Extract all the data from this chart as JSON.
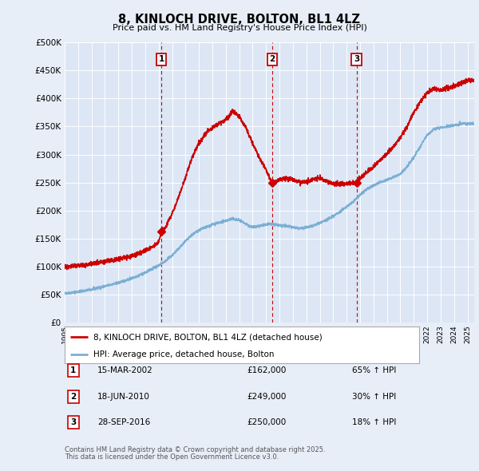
{
  "title": "8, KINLOCH DRIVE, BOLTON, BL1 4LZ",
  "subtitle": "Price paid vs. HM Land Registry's House Price Index (HPI)",
  "ytick_values": [
    0,
    50000,
    100000,
    150000,
    200000,
    250000,
    300000,
    350000,
    400000,
    450000,
    500000
  ],
  "ylim": [
    0,
    500000
  ],
  "xlim_start": 1995.0,
  "xlim_end": 2025.5,
  "sale_dates": [
    2002.21,
    2010.46,
    2016.74
  ],
  "sale_prices": [
    162000,
    249000,
    250000
  ],
  "sale_labels": [
    "1",
    "2",
    "3"
  ],
  "legend_property": "8, KINLOCH DRIVE, BOLTON, BL1 4LZ (detached house)",
  "legend_hpi": "HPI: Average price, detached house, Bolton",
  "table_rows": [
    {
      "label": "1",
      "date": "15-MAR-2002",
      "price": "£162,000",
      "change": "65% ↑ HPI"
    },
    {
      "label": "2",
      "date": "18-JUN-2010",
      "price": "£249,000",
      "change": "30% ↑ HPI"
    },
    {
      "label": "3",
      "date": "28-SEP-2016",
      "price": "£250,000",
      "change": "18% ↑ HPI"
    }
  ],
  "footnote1": "Contains HM Land Registry data © Crown copyright and database right 2025.",
  "footnote2": "This data is licensed under the Open Government Licence v3.0.",
  "color_property": "#cc0000",
  "color_hpi": "#7BAFD4",
  "color_vline": "#cc0000",
  "background_color": "#e8eef8",
  "plot_bg": "#dce6f5",
  "hpi_anchors": [
    [
      1995.0,
      52000
    ],
    [
      1995.5,
      53500
    ],
    [
      1996.0,
      55000
    ],
    [
      1996.5,
      57000
    ],
    [
      1997.0,
      59000
    ],
    [
      1997.5,
      62000
    ],
    [
      1998.0,
      65000
    ],
    [
      1998.5,
      68000
    ],
    [
      1999.0,
      71000
    ],
    [
      1999.5,
      75000
    ],
    [
      2000.0,
      79000
    ],
    [
      2000.5,
      84000
    ],
    [
      2001.0,
      89000
    ],
    [
      2001.5,
      96000
    ],
    [
      2002.0,
      102000
    ],
    [
      2002.5,
      110000
    ],
    [
      2003.0,
      120000
    ],
    [
      2003.5,
      132000
    ],
    [
      2004.0,
      145000
    ],
    [
      2004.5,
      157000
    ],
    [
      2005.0,
      165000
    ],
    [
      2005.5,
      170000
    ],
    [
      2006.0,
      175000
    ],
    [
      2006.5,
      178000
    ],
    [
      2007.0,
      182000
    ],
    [
      2007.5,
      185000
    ],
    [
      2008.0,
      183000
    ],
    [
      2008.5,
      176000
    ],
    [
      2009.0,
      170000
    ],
    [
      2009.5,
      172000
    ],
    [
      2010.0,
      175000
    ],
    [
      2010.5,
      176000
    ],
    [
      2011.0,
      174000
    ],
    [
      2011.5,
      172000
    ],
    [
      2012.0,
      170000
    ],
    [
      2012.5,
      168000
    ],
    [
      2013.0,
      170000
    ],
    [
      2013.5,
      173000
    ],
    [
      2014.0,
      178000
    ],
    [
      2014.5,
      183000
    ],
    [
      2015.0,
      190000
    ],
    [
      2015.5,
      198000
    ],
    [
      2016.0,
      207000
    ],
    [
      2016.5,
      216000
    ],
    [
      2017.0,
      228000
    ],
    [
      2017.5,
      238000
    ],
    [
      2018.0,
      245000
    ],
    [
      2018.5,
      250000
    ],
    [
      2019.0,
      255000
    ],
    [
      2019.5,
      260000
    ],
    [
      2020.0,
      265000
    ],
    [
      2020.5,
      278000
    ],
    [
      2021.0,
      295000
    ],
    [
      2021.5,
      315000
    ],
    [
      2022.0,
      335000
    ],
    [
      2022.5,
      345000
    ],
    [
      2023.0,
      348000
    ],
    [
      2023.5,
      350000
    ],
    [
      2024.0,
      352000
    ],
    [
      2024.5,
      355000
    ],
    [
      2025.0,
      355000
    ]
  ],
  "prop_anchors": [
    [
      1995.0,
      100000
    ],
    [
      1995.5,
      101000
    ],
    [
      1996.0,
      102000
    ],
    [
      1996.5,
      103500
    ],
    [
      1997.0,
      105000
    ],
    [
      1997.5,
      107000
    ],
    [
      1998.0,
      109000
    ],
    [
      1998.5,
      111000
    ],
    [
      1999.0,
      113000
    ],
    [
      1999.5,
      116000
    ],
    [
      2000.0,
      119000
    ],
    [
      2000.5,
      123000
    ],
    [
      2001.0,
      128000
    ],
    [
      2001.5,
      135000
    ],
    [
      2002.0,
      143000
    ],
    [
      2002.21,
      162000
    ],
    [
      2002.5,
      170000
    ],
    [
      2003.0,
      195000
    ],
    [
      2003.5,
      225000
    ],
    [
      2004.0,
      260000
    ],
    [
      2004.5,
      295000
    ],
    [
      2005.0,
      320000
    ],
    [
      2005.5,
      338000
    ],
    [
      2006.0,
      348000
    ],
    [
      2006.5,
      355000
    ],
    [
      2007.0,
      362000
    ],
    [
      2007.5,
      378000
    ],
    [
      2008.0,
      368000
    ],
    [
      2008.5,
      348000
    ],
    [
      2009.0,
      320000
    ],
    [
      2009.5,
      295000
    ],
    [
      2010.0,
      272000
    ],
    [
      2010.46,
      249000
    ],
    [
      2010.5,
      248000
    ],
    [
      2011.0,
      255000
    ],
    [
      2011.5,
      258000
    ],
    [
      2012.0,
      255000
    ],
    [
      2012.5,
      250000
    ],
    [
      2013.0,
      252000
    ],
    [
      2013.5,
      256000
    ],
    [
      2014.0,
      258000
    ],
    [
      2014.5,
      252000
    ],
    [
      2015.0,
      248000
    ],
    [
      2015.5,
      247000
    ],
    [
      2016.0,
      248000
    ],
    [
      2016.5,
      249000
    ],
    [
      2016.74,
      250000
    ],
    [
      2017.0,
      258000
    ],
    [
      2017.5,
      268000
    ],
    [
      2018.0,
      278000
    ],
    [
      2018.5,
      290000
    ],
    [
      2019.0,
      302000
    ],
    [
      2019.5,
      315000
    ],
    [
      2020.0,
      330000
    ],
    [
      2020.5,
      350000
    ],
    [
      2021.0,
      375000
    ],
    [
      2021.5,
      395000
    ],
    [
      2022.0,
      410000
    ],
    [
      2022.5,
      418000
    ],
    [
      2023.0,
      415000
    ],
    [
      2023.5,
      418000
    ],
    [
      2024.0,
      422000
    ],
    [
      2024.5,
      428000
    ],
    [
      2025.0,
      432000
    ]
  ]
}
